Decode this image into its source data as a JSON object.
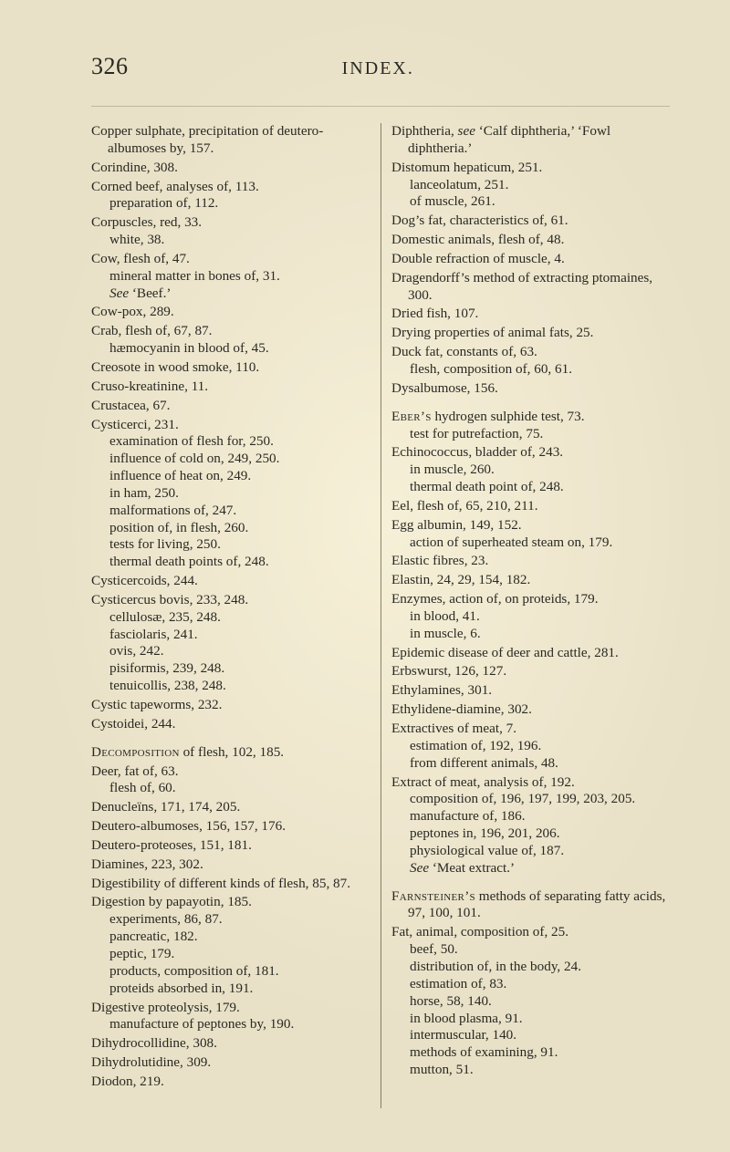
{
  "page": {
    "number": "326",
    "section": "INDEX."
  },
  "colors": {
    "paper": "#f6f0d8",
    "ink": "#2a2a24",
    "rule": "#8e8568"
  },
  "typography": {
    "body_fontsize_pt": 11,
    "header_fontsize_pt": 18,
    "line_height": 1.24,
    "family": "Times New Roman"
  },
  "entries": [
    {
      "head": "Copper sulphate, precipitation of deutero-albumoses by, 157."
    },
    {
      "head": "Corindine, 308."
    },
    {
      "head": "Corned beef, analyses of, 113.",
      "subs": [
        "preparation of, 112."
      ]
    },
    {
      "head": "Corpuscles, red, 33.",
      "subs": [
        "white, 38."
      ]
    },
    {
      "head": "Cow, flesh of, 47.",
      "subs": [
        "mineral matter in bones of, 31.",
        "<i>See</i> ‘Beef.’"
      ]
    },
    {
      "head": "Cow-pox, 289."
    },
    {
      "head": "Crab, flesh of, 67, 87.",
      "subs": [
        "hæmocyanin in blood of, 45."
      ]
    },
    {
      "head": "Creosote in wood smoke, 110."
    },
    {
      "head": "Cruso-kreatinine, 11."
    },
    {
      "head": "Crustacea, 67."
    },
    {
      "head": "Cysticerci, 231.",
      "subs": [
        "examination of flesh for, 250.",
        "influence of cold on, 249, 250.",
        "influence of heat on, 249.",
        "in ham, 250.",
        "malformations of, 247.",
        "position of, in flesh, 260.",
        "tests for living, 250.",
        "thermal death points of, 248."
      ]
    },
    {
      "head": "Cysticercoids, 244."
    },
    {
      "head": "Cysticercus bovis, 233, 248.",
      "subs": [
        "cellulosæ, 235, 248.",
        "fasciolaris, 241.",
        "ovis, 242.",
        "pisiformis, 239, 248.",
        "tenuicollis, 238, 248."
      ]
    },
    {
      "head": "Cystic tapeworms, 232."
    },
    {
      "head": "Cystoidei, 244."
    },
    {
      "spacer": true
    },
    {
      "head": "<span class='sc'>Decomposition</span> of flesh, 102, 185."
    },
    {
      "head": "Deer, fat of, 63.",
      "subs": [
        "flesh of, 60."
      ]
    },
    {
      "head": "Denucleïns, 171, 174, 205."
    },
    {
      "head": "Deutero-albumoses, 156, 157, 176."
    },
    {
      "head": "Deutero-proteoses, 151, 181."
    },
    {
      "head": "Diamines, 223, 302."
    },
    {
      "head": "Digestibility of different kinds of flesh, 85, 87."
    },
    {
      "head": "Digestion by papayotin, 185.",
      "subs": [
        "experiments, 86, 87.",
        "pancreatic, 182.",
        "peptic, 179.",
        "products, composition of, 181.",
        "proteids absorbed in, 191."
      ]
    },
    {
      "head": "Digestive proteolysis, 179.",
      "subs": [
        "manufacture of peptones by, 190."
      ]
    },
    {
      "head": "Dihydrocollidine, 308."
    },
    {
      "head": "Dihydrolutidine, 309."
    },
    {
      "head": "Diodon, 219."
    },
    {
      "head": "Diphtheria, <i>see</i> ‘Calf diphtheria,’ ‘Fowl diphtheria.’"
    },
    {
      "head": "Distomum hepaticum, 251.",
      "subs": [
        "lanceolatum, 251.",
        "of muscle, 261."
      ]
    },
    {
      "head": "Dog’s fat, characteristics of, 61."
    },
    {
      "head": "Domestic animals, flesh of, 48."
    },
    {
      "head": "Double refraction of muscle, 4."
    },
    {
      "head": "Dragendorff’s method of extracting ptomaines, 300."
    },
    {
      "head": "Dried fish, 107."
    },
    {
      "head": "Drying properties of animal fats, 25."
    },
    {
      "head": "Duck fat, constants of, 63.",
      "subs": [
        "flesh, composition of, 60, 61."
      ]
    },
    {
      "head": "Dysalbumose, 156."
    },
    {
      "spacer": true
    },
    {
      "head": "<span class='sc'>Eber’s</span> hydrogen sulphide test, 73.",
      "subs": [
        "test for putrefaction, 75."
      ]
    },
    {
      "head": "Echinococcus, bladder of, 243.",
      "subs": [
        "in muscle, 260.",
        "thermal death point of, 248."
      ]
    },
    {
      "head": "Eel, flesh of, 65, 210, 211."
    },
    {
      "head": "Egg albumin, 149, 152.",
      "subs": [
        "action of superheated steam on, 179."
      ]
    },
    {
      "head": "Elastic fibres, 23."
    },
    {
      "head": "Elastin, 24, 29, 154, 182."
    },
    {
      "head": "Enzymes, action of, on proteids, 179.",
      "subs": [
        "in blood, 41.",
        "in muscle, 6."
      ]
    },
    {
      "head": "Epidemic disease of deer and cattle, 281."
    },
    {
      "head": "Erbswurst, 126, 127."
    },
    {
      "head": "Ethylamines, 301."
    },
    {
      "head": "Ethylidene-diamine, 302."
    },
    {
      "head": "Extractives of meat, 7.",
      "subs": [
        "estimation of, 192, 196.",
        "from different animals, 48."
      ]
    },
    {
      "head": "Extract of meat, analysis of, 192.",
      "subs": [
        "composition of, 196, 197, 199, 203, 205.",
        "manufacture of, 186.",
        "peptones in, 196, 201, 206.",
        "physiological value of, 187.",
        "<i>See</i> ‘Meat extract.’"
      ]
    },
    {
      "spacer": true
    },
    {
      "head": "<span class='sc'>Farnsteiner’s</span> methods of separat­ing fatty acids, 97, 100, 101."
    },
    {
      "head": "Fat, animal, composition of, 25.",
      "subs": [
        "beef, 50.",
        "distribution of, in the body, 24.",
        "estimation of, 83.",
        "horse, 58, 140.",
        "in blood plasma, 91.",
        "intermuscular, 140.",
        "methods of examining, 91.",
        "mutton, 51."
      ]
    }
  ]
}
